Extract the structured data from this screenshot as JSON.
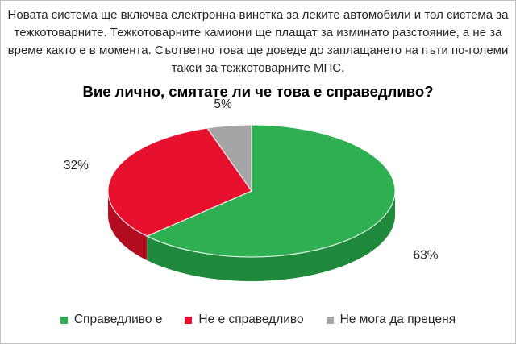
{
  "intro_text": "Новата система ще включва електронна винетка за леките автомобили и тол система за тежкотоварните. Тежкотоварните камиони ще плащат за изминато разстояние, а не за време както е в момента. Съответно това ще доведе до заплащането на пъти по-големи такси за тежкотоварните МПС.",
  "chart_data": {
    "type": "pie",
    "title": "Вие лично, смятате ли че това е справедливо?",
    "slices": [
      {
        "label": "Справедливо е",
        "value": 63,
        "value_label": "63%",
        "color": "#2eb052",
        "side_color": "#1f8a3c"
      },
      {
        "label": "Не е справедливо",
        "value": 32,
        "value_label": "32%",
        "color": "#e8112d",
        "side_color": "#b30d22"
      },
      {
        "label": "Не мога да преценя",
        "value": 5,
        "value_label": "5%",
        "color": "#a5a5a5",
        "side_color": "#7f7f7f"
      }
    ],
    "legend_position": "bottom",
    "style": "3d"
  }
}
